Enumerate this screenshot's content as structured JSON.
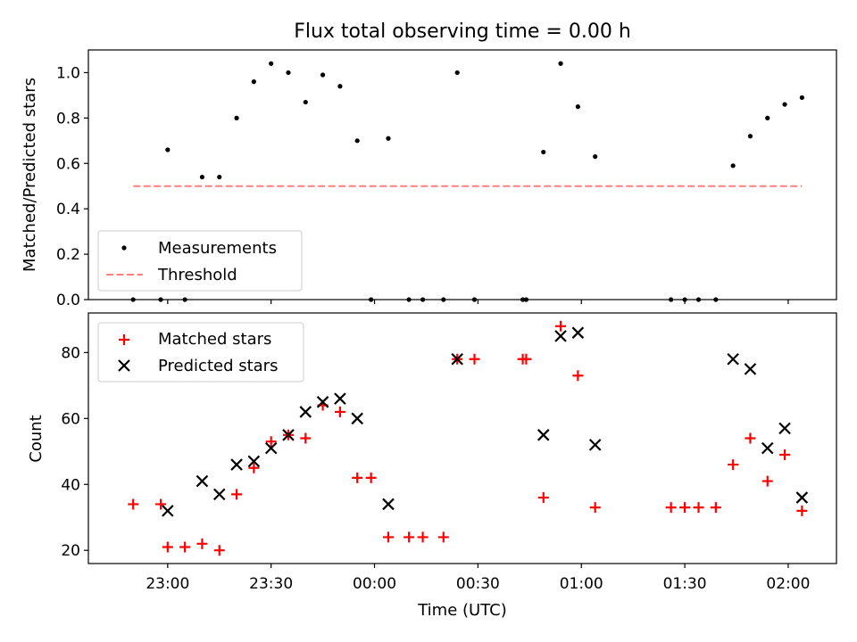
{
  "chart_data": [
    {
      "type": "scatter",
      "title": "Flux total observing time = 0.00 h",
      "ylabel": "Matched/Predicted stars",
      "xlabel": "",
      "ylim": [
        0.0,
        1.1
      ],
      "yticks": [
        "0.0",
        "0.2",
        "0.4",
        "0.6",
        "0.8",
        "1.0"
      ],
      "xticks_visible": false,
      "legend": {
        "placement": "bottom-left",
        "entries": [
          "Measurements",
          "Threshold"
        ]
      },
      "series": [
        {
          "name": "Measurements",
          "marker": "dot",
          "color": "#000000",
          "points": [
            [
              "22:50",
              0.0
            ],
            [
              "22:58",
              0.0
            ],
            [
              "23:00",
              0.66
            ],
            [
              "23:05",
              0.0
            ],
            [
              "23:10",
              0.54
            ],
            [
              "23:15",
              0.54
            ],
            [
              "23:20",
              0.8
            ],
            [
              "23:25",
              0.96
            ],
            [
              "23:30",
              1.04
            ],
            [
              "23:35",
              1.0
            ],
            [
              "23:40",
              0.87
            ],
            [
              "23:45",
              0.99
            ],
            [
              "23:50",
              0.94
            ],
            [
              "23:55",
              0.7
            ],
            [
              "23:59",
              0.0
            ],
            [
              "00:04",
              0.71
            ],
            [
              "00:10",
              0.0
            ],
            [
              "00:14",
              0.0
            ],
            [
              "00:20",
              0.0
            ],
            [
              "00:24",
              1.0
            ],
            [
              "00:29",
              0.0
            ],
            [
              "00:43",
              0.0
            ],
            [
              "00:44",
              0.0
            ],
            [
              "00:49",
              0.65
            ],
            [
              "00:54",
              1.04
            ],
            [
              "00:59",
              0.85
            ],
            [
              "01:04",
              0.63
            ],
            [
              "01:26",
              0.0
            ],
            [
              "01:30",
              0.0
            ],
            [
              "01:34",
              0.0
            ],
            [
              "01:39",
              0.0
            ],
            [
              "01:44",
              0.59
            ],
            [
              "01:49",
              0.72
            ],
            [
              "01:54",
              0.8
            ],
            [
              "01:59",
              0.86
            ],
            [
              "02:04",
              0.89
            ]
          ]
        },
        {
          "name": "Threshold",
          "marker": "dashed-line",
          "color": "#ff7f7f",
          "points": [
            [
              "22:50",
              0.5
            ],
            [
              "02:04",
              0.5
            ]
          ]
        }
      ]
    },
    {
      "type": "scatter",
      "title": "",
      "ylabel": "Count",
      "xlabel": "Time (UTC)",
      "ylim": [
        16,
        92
      ],
      "yticks": [
        "20",
        "40",
        "60",
        "80"
      ],
      "xticks": [
        "23:00",
        "23:30",
        "00:00",
        "00:30",
        "01:00",
        "01:30",
        "02:00"
      ],
      "legend": {
        "placement": "top-left",
        "entries": [
          "Matched stars",
          "Predicted stars"
        ]
      },
      "series": [
        {
          "name": "Matched stars",
          "marker": "plus",
          "color": "#ff0000",
          "points": [
            [
              "22:50",
              34
            ],
            [
              "22:58",
              34
            ],
            [
              "23:00",
              21
            ],
            [
              "23:05",
              21
            ],
            [
              "23:10",
              22
            ],
            [
              "23:15",
              20
            ],
            [
              "23:20",
              37
            ],
            [
              "23:25",
              45
            ],
            [
              "23:30",
              53
            ],
            [
              "23:35",
              55
            ],
            [
              "23:40",
              54
            ],
            [
              "23:45",
              64
            ],
            [
              "23:50",
              62
            ],
            [
              "23:55",
              42
            ],
            [
              "23:59",
              42
            ],
            [
              "00:04",
              24
            ],
            [
              "00:10",
              24
            ],
            [
              "00:14",
              24
            ],
            [
              "00:20",
              24
            ],
            [
              "00:24",
              78
            ],
            [
              "00:29",
              78
            ],
            [
              "00:43",
              78
            ],
            [
              "00:44",
              78
            ],
            [
              "00:49",
              36
            ],
            [
              "00:54",
              88
            ],
            [
              "00:59",
              73
            ],
            [
              "01:04",
              33
            ],
            [
              "01:26",
              33
            ],
            [
              "01:30",
              33
            ],
            [
              "01:34",
              33
            ],
            [
              "01:39",
              33
            ],
            [
              "01:44",
              46
            ],
            [
              "01:49",
              54
            ],
            [
              "01:54",
              41
            ],
            [
              "01:59",
              49
            ],
            [
              "02:04",
              32
            ]
          ]
        },
        {
          "name": "Predicted stars",
          "marker": "x",
          "color": "#000000",
          "points": [
            [
              "23:00",
              32
            ],
            [
              "23:10",
              41
            ],
            [
              "23:15",
              37
            ],
            [
              "23:20",
              46
            ],
            [
              "23:25",
              47
            ],
            [
              "23:30",
              51
            ],
            [
              "23:35",
              55
            ],
            [
              "23:40",
              62
            ],
            [
              "23:45",
              65
            ],
            [
              "23:50",
              66
            ],
            [
              "23:55",
              60
            ],
            [
              "00:04",
              34
            ],
            [
              "00:24",
              78
            ],
            [
              "00:49",
              55
            ],
            [
              "00:54",
              85
            ],
            [
              "00:59",
              86
            ],
            [
              "01:04",
              52
            ],
            [
              "01:44",
              78
            ],
            [
              "01:49",
              75
            ],
            [
              "01:54",
              51
            ],
            [
              "01:59",
              57
            ],
            [
              "02:04",
              36
            ]
          ]
        }
      ]
    }
  ]
}
